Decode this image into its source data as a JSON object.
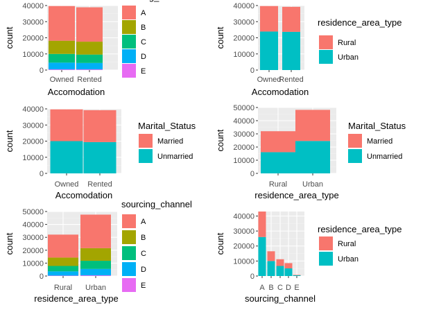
{
  "colors": {
    "panel_bg": "#ebebeb",
    "grid_major": "#ffffff",
    "grid_minor": "#f4f4f4",
    "A": "#f8766d",
    "B": "#a3a500",
    "C": "#00bf7d",
    "D": "#00b0f6",
    "E": "#e76bf3",
    "Rural": "#f8766d",
    "Urban": "#00bfc4",
    "Married": "#f8766d",
    "Unmarried": "#00bfc4"
  },
  "chart_data": [
    {
      "type": "bar",
      "stacked": true,
      "xlabel": "Accomodation",
      "ylabel": "count",
      "categories": [
        "Owned",
        "Rented"
      ],
      "ylim": [
        0,
        40000
      ],
      "yticks": [
        0,
        10000,
        20000,
        30000,
        40000
      ],
      "legend_title": "sourcing_channel",
      "legend_placement": "right",
      "series": [
        {
          "name": "A",
          "values": [
            21500,
            21300
          ]
        },
        {
          "name": "B",
          "values": [
            8200,
            8000
          ]
        },
        {
          "name": "C",
          "values": [
            5400,
            5200
          ]
        },
        {
          "name": "D",
          "values": [
            4200,
            4000
          ]
        },
        {
          "name": "E",
          "values": [
            400,
            400
          ]
        }
      ]
    },
    {
      "type": "bar",
      "stacked": true,
      "xlabel": "Accomodation",
      "ylabel": "count",
      "categories": [
        "Owned",
        "Rented"
      ],
      "ylim": [
        0,
        40000
      ],
      "yticks": [
        0,
        10000,
        20000,
        30000,
        40000
      ],
      "legend_title": "residence_area_type",
      "legend_placement": "right",
      "series": [
        {
          "name": "Rural",
          "values": [
            15800,
            15500
          ]
        },
        {
          "name": "Urban",
          "values": [
            23900,
            23700
          ]
        }
      ]
    },
    {
      "type": "bar",
      "stacked": true,
      "xlabel": "Accomodation",
      "ylabel": "count",
      "categories": [
        "Owned",
        "Rented"
      ],
      "ylim": [
        0,
        40000
      ],
      "yticks": [
        0,
        10000,
        20000,
        30000,
        40000
      ],
      "legend_title": "Marital_Status",
      "legend_placement": "right",
      "series": [
        {
          "name": "Married",
          "values": [
            19700,
            19800
          ]
        },
        {
          "name": "Unmarried",
          "values": [
            20000,
            19400
          ]
        }
      ]
    },
    {
      "type": "bar",
      "stacked": true,
      "xlabel": "residence_area_type",
      "ylabel": "count",
      "categories": [
        "Rural",
        "Urban"
      ],
      "ylim": [
        0,
        50000
      ],
      "yticks": [
        0,
        10000,
        20000,
        30000,
        40000,
        50000
      ],
      "legend_title": "Marital_Status",
      "legend_placement": "right",
      "series": [
        {
          "name": "Married",
          "values": [
            15900,
            23600
          ]
        },
        {
          "name": "Unmarried",
          "values": [
            16100,
            24600
          ]
        }
      ]
    },
    {
      "type": "bar",
      "stacked": true,
      "xlabel": "residence_area_type",
      "ylabel": "count",
      "categories": [
        "Rural",
        "Urban"
      ],
      "ylim": [
        0,
        50000
      ],
      "yticks": [
        0,
        10000,
        20000,
        30000,
        40000,
        50000
      ],
      "legend_title": "sourcing_channel",
      "legend_placement": "right",
      "series": [
        {
          "name": "A",
          "values": [
            17800,
            26000
          ]
        },
        {
          "name": "B",
          "values": [
            6500,
            9800
          ]
        },
        {
          "name": "C",
          "values": [
            4200,
            6300
          ]
        },
        {
          "name": "D",
          "values": [
            3300,
            5000
          ]
        },
        {
          "name": "E",
          "values": [
            300,
            500
          ]
        }
      ]
    },
    {
      "type": "bar",
      "stacked": true,
      "xlabel": "sourcing_channel",
      "ylabel": "count",
      "categories": [
        "A",
        "B",
        "C",
        "D",
        "E"
      ],
      "ylim": [
        0,
        43000
      ],
      "yticks": [
        0,
        10000,
        20000,
        30000,
        40000
      ],
      "legend_title": "residence_area_type",
      "legend_placement": "right",
      "series": [
        {
          "name": "Rural",
          "values": [
            17000,
            6500,
            4500,
            3500,
            300
          ]
        },
        {
          "name": "Urban",
          "values": [
            26000,
            10000,
            6700,
            5100,
            500
          ]
        }
      ]
    }
  ]
}
